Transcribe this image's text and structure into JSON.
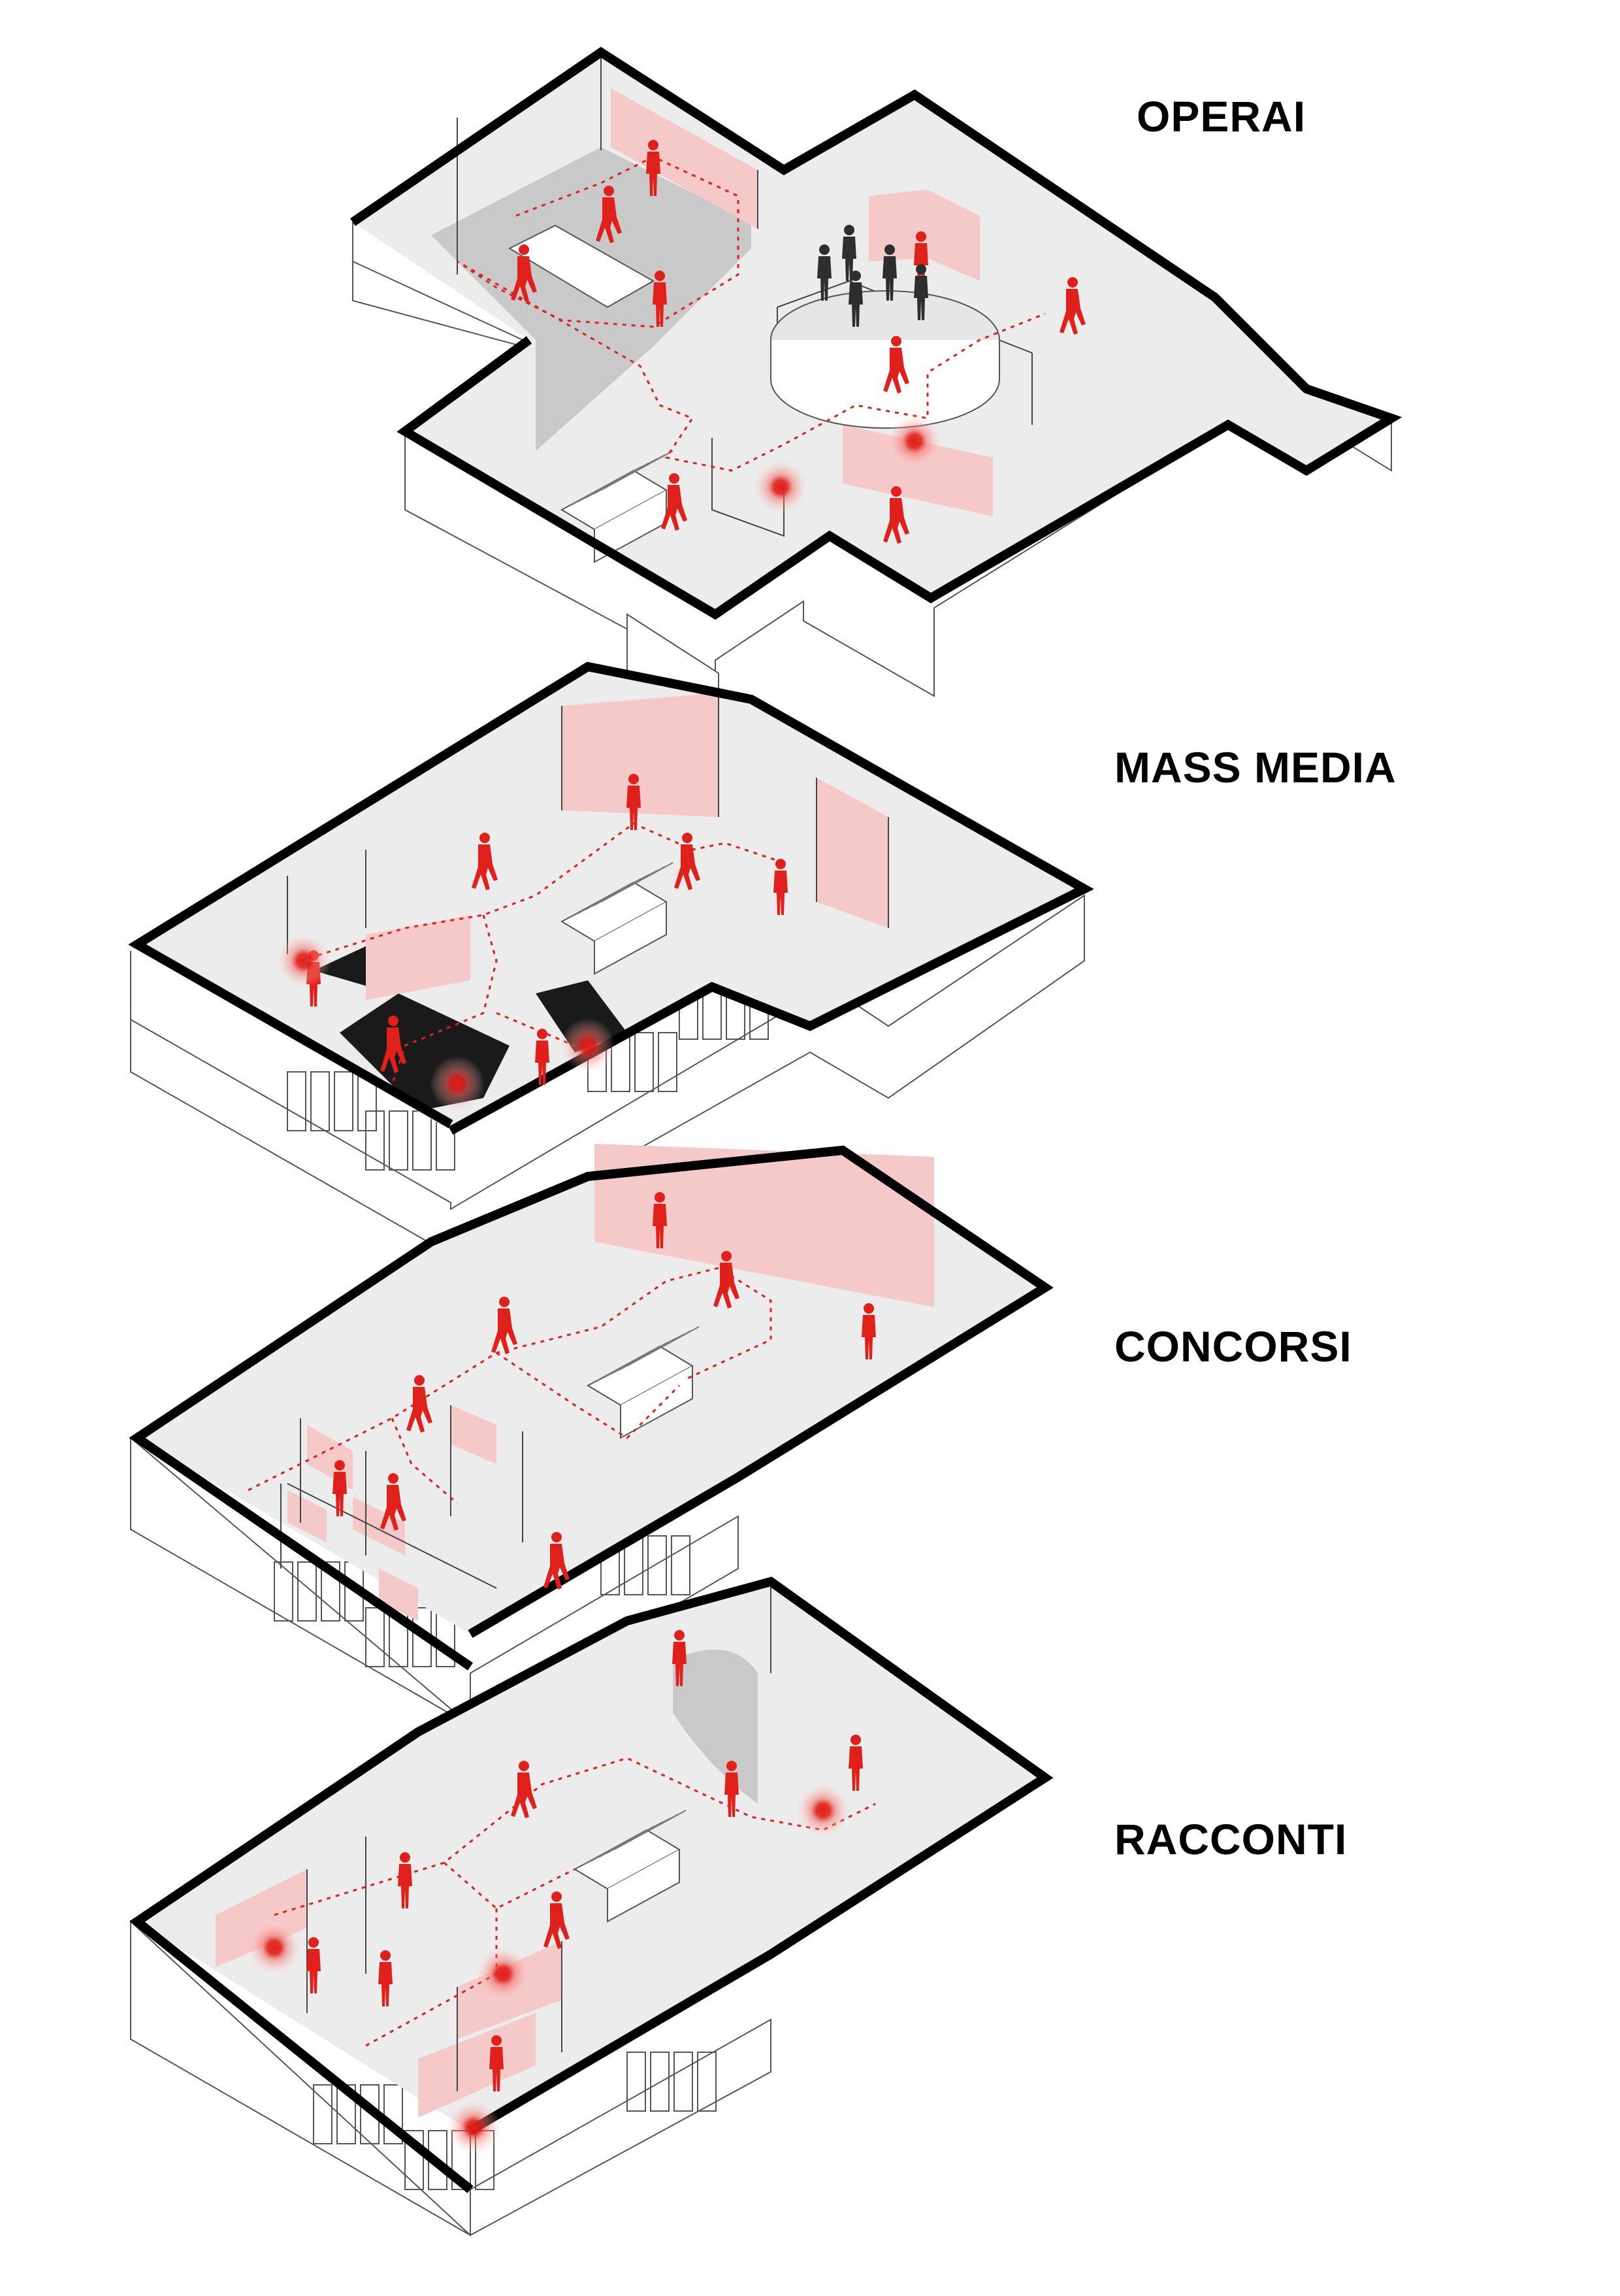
{
  "floors": [
    {
      "key": "operai",
      "label": "OPERAI"
    },
    {
      "key": "mass",
      "label": "MASS MEDIA"
    },
    {
      "key": "concorsi",
      "label": "CONCORSI"
    },
    {
      "key": "racconti",
      "label": "RACCONTI"
    }
  ],
  "colors": {
    "accent": "#e0201a",
    "floor": "#ececec",
    "dark_floor": "#c9c9c9",
    "black_floor": "#1a1a1a",
    "panel_pink": "#f6c9c9",
    "outline": "#000000"
  }
}
